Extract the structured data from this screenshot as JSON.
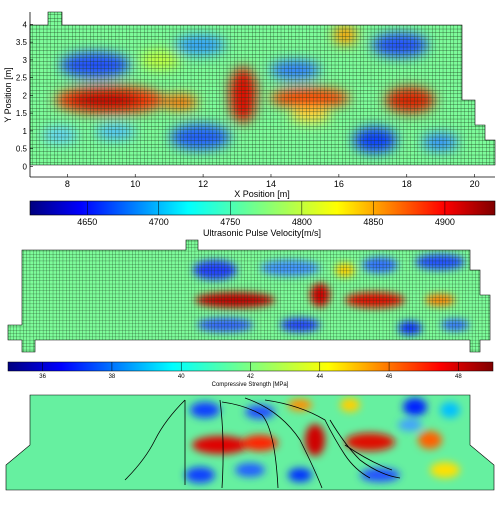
{
  "chart_data": [
    {
      "type": "heatmap",
      "xlabel": "X Position [m]",
      "ylabel": "Y Position [m]",
      "x_ticks": [
        8,
        10,
        12,
        14,
        16,
        18,
        20
      ],
      "y_ticks": [
        0,
        0.5,
        1,
        1.5,
        2,
        2.5,
        3,
        3.5,
        4
      ],
      "xlim": [
        6.9,
        20.6
      ],
      "ylim": [
        -0.3,
        4.35
      ],
      "colorbar": {
        "label": "Ultrasonic Pulse Velocity[m/s]",
        "ticks": [
          4650,
          4700,
          4750,
          4800,
          4850,
          4900
        ],
        "range": [
          4610,
          4935
        ]
      },
      "high_bands": [
        {
          "x": 9.5,
          "y": 1.7,
          "level": "high"
        },
        {
          "x": 13.2,
          "y": 1.9,
          "level": "high"
        },
        {
          "x": 15.2,
          "y": 1.7,
          "level": "high"
        },
        {
          "x": 18.2,
          "y": 1.7,
          "level": "high"
        }
      ]
    },
    {
      "type": "heatmap",
      "colorbar": {
        "label": "Compressive Strength [MPa]",
        "ticks": [
          36,
          38,
          40,
          42,
          44,
          46,
          48
        ],
        "range": [
          35,
          49
        ]
      }
    },
    {
      "type": "heatmap"
    }
  ],
  "colors": {
    "map_low": "#00007f",
    "map_mid": "#7fff7f",
    "map_high": "#7f0000",
    "background_green": "#7dfc9a",
    "grid_line": "#1a3a1a"
  }
}
